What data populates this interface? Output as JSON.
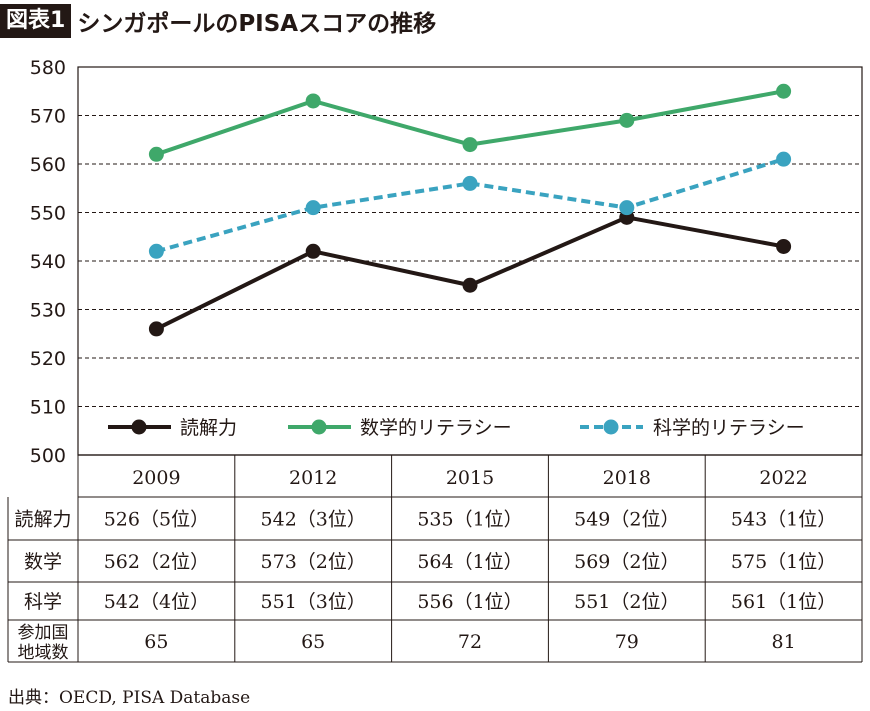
{
  "header": {
    "tag": "図表1",
    "title": "シンガポールのPISAスコアの推移"
  },
  "chart_data": {
    "type": "line",
    "categories": [
      "2009",
      "2012",
      "2015",
      "2018",
      "2022"
    ],
    "ylim": [
      500,
      580
    ],
    "yticks": [
      500,
      510,
      520,
      530,
      540,
      550,
      560,
      570,
      580
    ],
    "grid": true,
    "legend": "bottom",
    "series": [
      {
        "name": "読解力",
        "values": [
          526,
          542,
          535,
          549,
          543
        ],
        "color": "#231815",
        "style": "solid"
      },
      {
        "name": "数学的リテラシー",
        "values": [
          562,
          573,
          564,
          569,
          575
        ],
        "color": "#3fa86a",
        "style": "solid"
      },
      {
        "name": "科学的リテラシー",
        "values": [
          542,
          551,
          556,
          551,
          561
        ],
        "color": "#3aa3c0",
        "style": "dashed"
      }
    ]
  },
  "table": {
    "rows": [
      {
        "label": "読解力",
        "cells": [
          "526（5位）",
          "542（3位）",
          "535（1位）",
          "549（2位）",
          "543（1位）"
        ]
      },
      {
        "label": "数学",
        "cells": [
          "562（2位）",
          "573（2位）",
          "564（1位）",
          "569（2位）",
          "575（1位）"
        ]
      },
      {
        "label": "科学",
        "cells": [
          "542（4位）",
          "551（3位）",
          "556（1位）",
          "551（2位）",
          "561（1位）"
        ]
      },
      {
        "label": "参加国\n地域数",
        "cells": [
          "65",
          "65",
          "72",
          "79",
          "81"
        ]
      }
    ]
  },
  "source": "出典：OECD, PISA Database"
}
